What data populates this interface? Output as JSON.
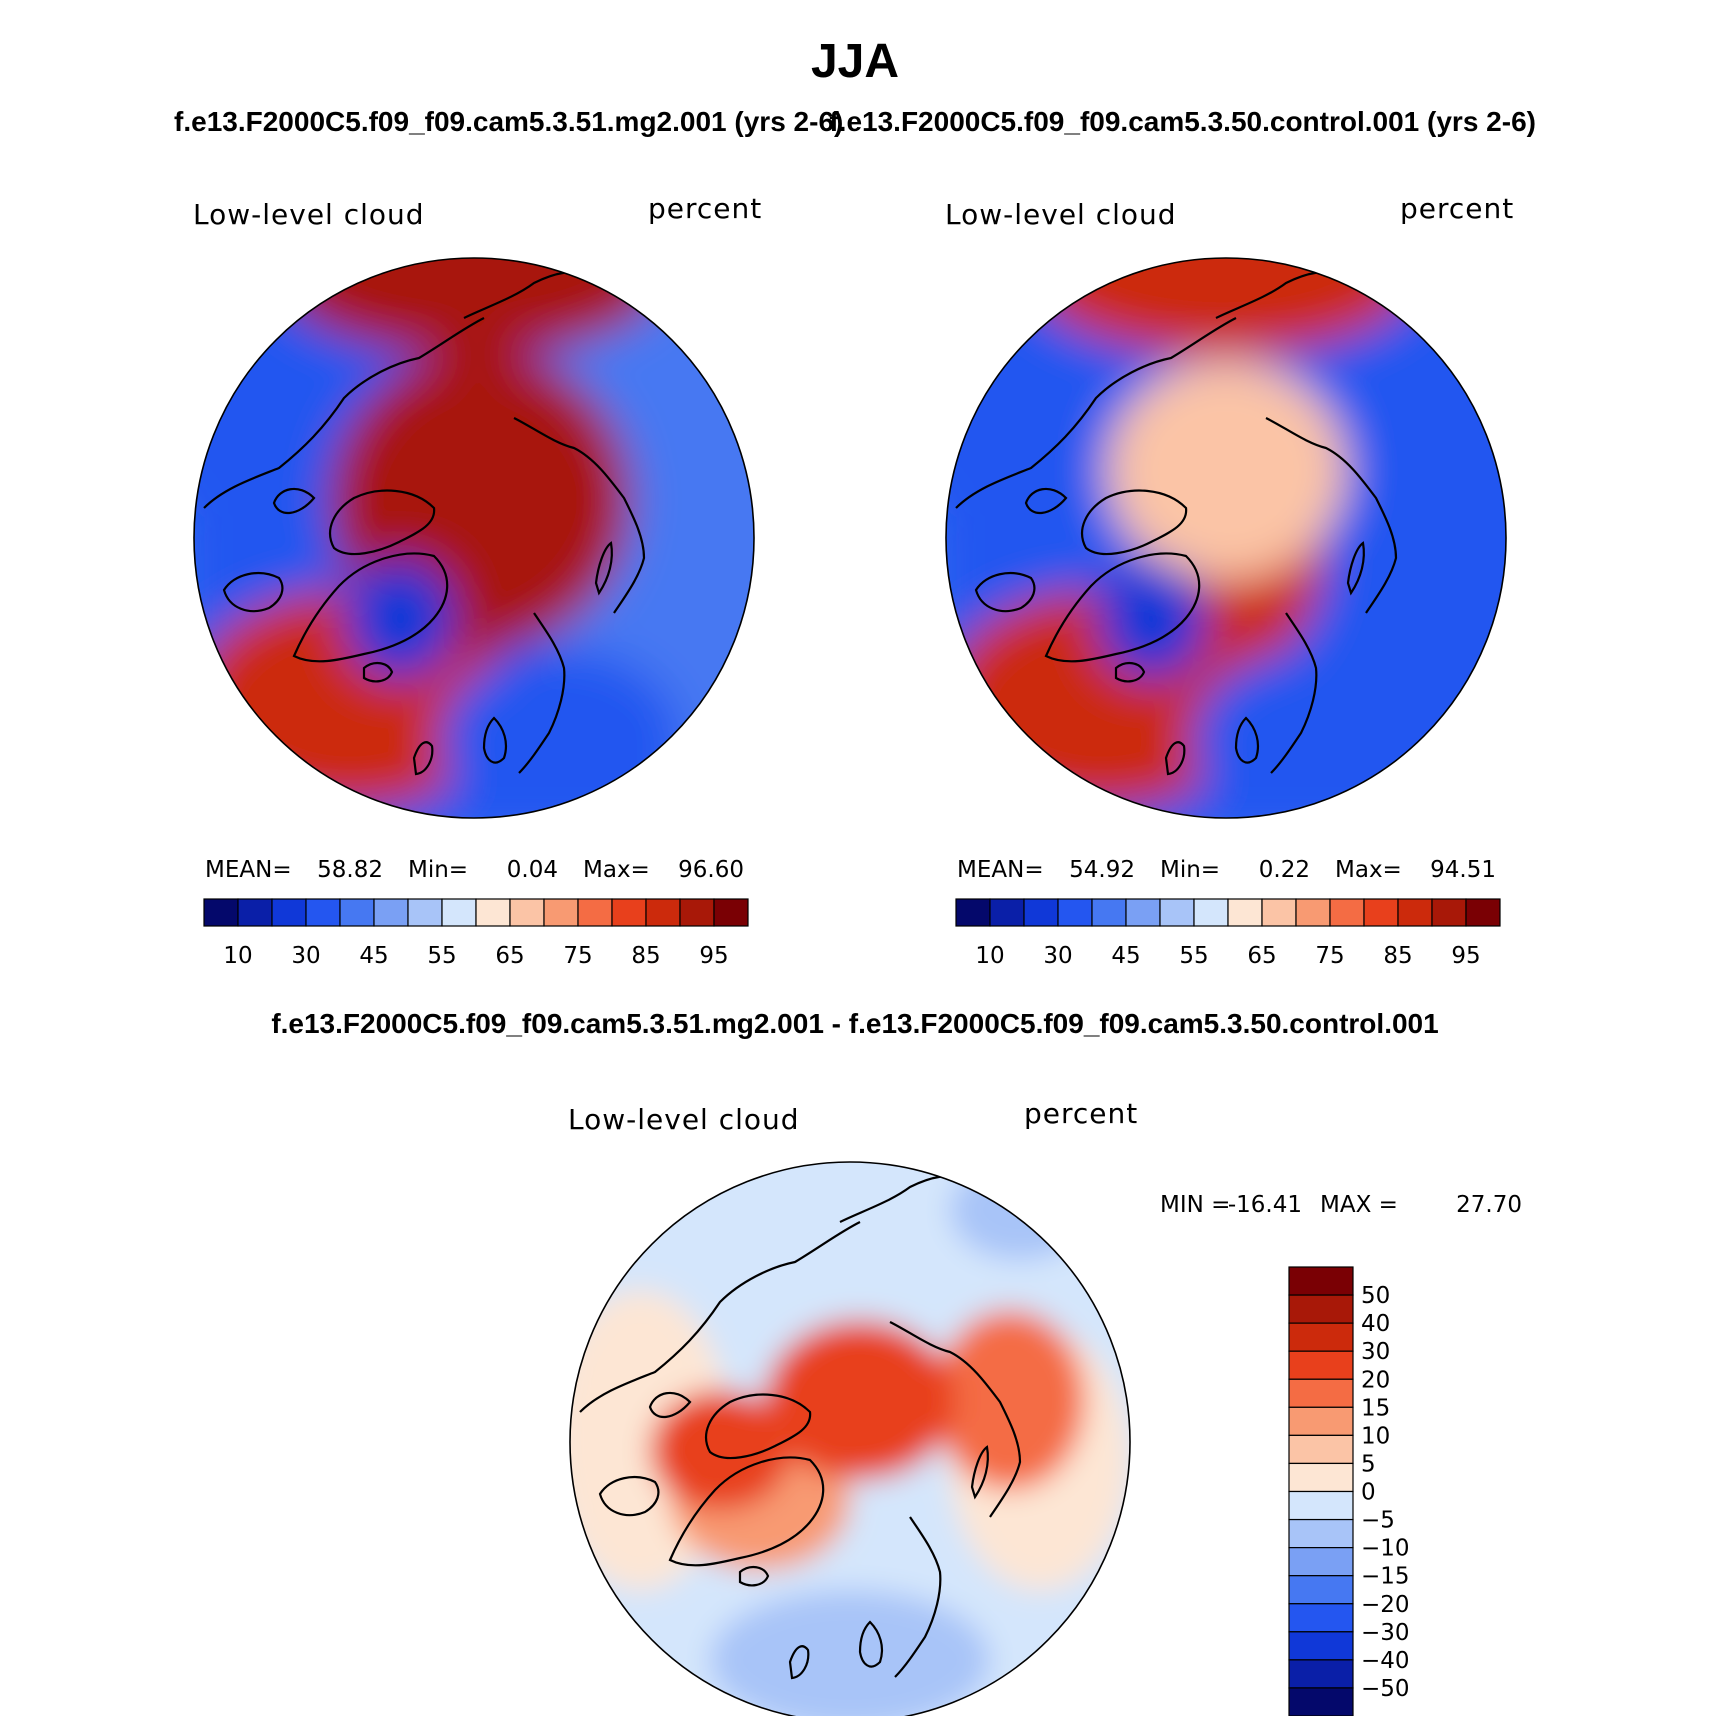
{
  "title": "JJA",
  "top_subtitle": {
    "left": "f.e13.F2000C5.f09_f09.cam5.3.51.mg2.001 (yrs 2-6)",
    "right": "f.e13.F2000C5.f09_f09.cam5.3.50.control.001 (yrs 2-6)"
  },
  "diff_subtitle": "f.e13.F2000C5.f09_f09.cam5.3.51.mg2.001 - f.e13.F2000C5.f09_f09.cam5.3.50.control.001",
  "colors": {
    "abs_scale": [
      "#04086b",
      "#0a1fa8",
      "#1038d8",
      "#2456f0",
      "#4678f2",
      "#7aa0f4",
      "#a8c4f8",
      "#d4e6fc",
      "#fde6d4",
      "#fbc4a6",
      "#f89a72",
      "#f46c44",
      "#e8401c",
      "#cc2a0c",
      "#a81808",
      "#7a0004"
    ],
    "diff_scale": [
      "#04086b",
      "#0a1fa8",
      "#1038d8",
      "#2456f0",
      "#4678f2",
      "#7aa0f4",
      "#a8c4f8",
      "#d4e6fc",
      "#fde6d4",
      "#fbc4a6",
      "#f89a72",
      "#f46c44",
      "#e8401c",
      "#cc2a0c",
      "#a81808",
      "#7a0004"
    ]
  },
  "chart_data": [
    {
      "type": "heatmap",
      "projection": "north polar stereographic",
      "title": "Low-level cloud",
      "units": "percent",
      "case": "f.e13.F2000C5.f09_f09.cam5.3.51.mg2.001 (yrs 2-6)",
      "stats": {
        "mean_label": "MEAN=",
        "mean": "58.82",
        "min_label": "Min=",
        "min": "0.04",
        "max_label": "Max=",
        "max": "96.60"
      },
      "colorbar_levels": [
        "10",
        "30",
        "45",
        "55",
        "65",
        "75",
        "85",
        "95"
      ],
      "field_description_regions": {
        "arctic_ocean": 93,
        "north_atlantic": 88,
        "north_pacific": 90,
        "greenland_interior": 25,
        "siberia": 40,
        "north_america_interior": 30,
        "scandinavia": 35
      }
    },
    {
      "type": "heatmap",
      "projection": "north polar stereographic",
      "title": "Low-level cloud",
      "units": "percent",
      "case": "f.e13.F2000C5.f09_f09.cam5.3.50.control.001 (yrs 2-6)",
      "stats": {
        "mean_label": "MEAN=",
        "mean": "54.92",
        "min_label": "Min=",
        "min": "0.22",
        "max_label": "Max=",
        "max": "94.51"
      },
      "colorbar_levels": [
        "10",
        "30",
        "45",
        "55",
        "65",
        "75",
        "85",
        "95"
      ],
      "field_description_regions": {
        "arctic_ocean": 68,
        "north_atlantic": 85,
        "north_pacific": 88,
        "greenland_interior": 20,
        "siberia": 38,
        "north_america_interior": 30,
        "scandinavia": 33
      }
    },
    {
      "type": "heatmap",
      "projection": "north polar stereographic",
      "title": "Low-level cloud",
      "units": "percent",
      "case": "f.e13.F2000C5.f09_f09.cam5.3.51.mg2.001 - f.e13.F2000C5.f09_f09.cam5.3.50.control.001",
      "stats": {
        "min_label": "MIN =",
        "min": "-16.41",
        "max_label": "MAX =",
        "max": "27.70"
      },
      "colorbar_levels": [
        "50",
        "40",
        "30",
        "20",
        "15",
        "10",
        "5",
        "0",
        "−5",
        "−10",
        "−15",
        "−20",
        "−30",
        "−40",
        "−50"
      ],
      "field_description_regions": {
        "arctic_ocean": 22,
        "north_atlantic": 3,
        "north_pacific": 2,
        "siberia_coast": 18,
        "canadian_archipelago": 20,
        "eurasia": -4,
        "north_america": -3
      }
    }
  ]
}
